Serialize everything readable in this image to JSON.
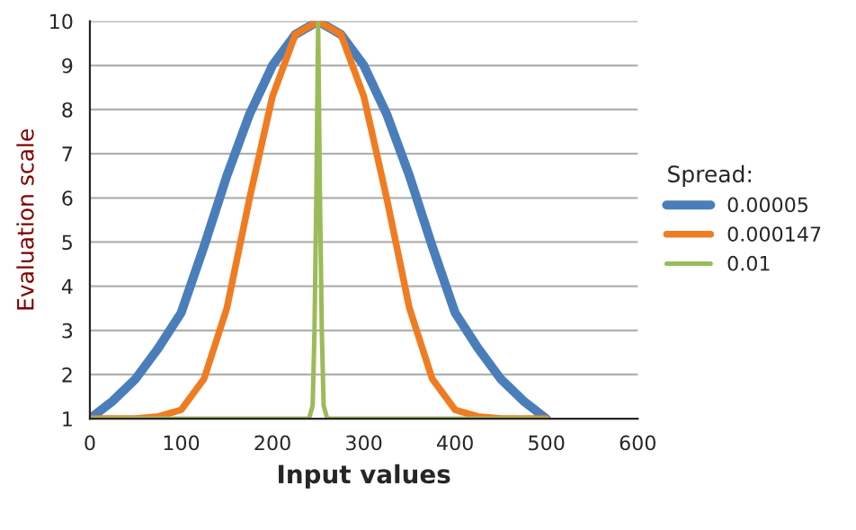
{
  "chart_data": {
    "type": "line",
    "xlabel": "Input values",
    "ylabel": "Evaluation scale",
    "legend_title": "Spread:",
    "xlim": [
      0,
      600
    ],
    "xticks": [
      0,
      100,
      200,
      300,
      400,
      500,
      600
    ],
    "ylim": [
      1,
      10
    ],
    "yticks": [
      1,
      2,
      3,
      4,
      5,
      6,
      7,
      8,
      9,
      10
    ],
    "grid": "y",
    "legend": "right",
    "marker": "none",
    "line_style": "solid",
    "series": [
      {
        "name": "0.00005",
        "color": "#4a7ebb",
        "x": [
          0,
          25,
          50,
          75,
          100,
          125,
          150,
          175,
          200,
          225,
          250,
          275,
          300,
          325,
          350,
          375,
          400,
          425,
          450,
          475,
          500
        ],
        "values": [
          1.0,
          1.4,
          1.9,
          2.6,
          3.4,
          4.9,
          6.5,
          7.9,
          9.0,
          9.7,
          10,
          9.7,
          9.0,
          7.9,
          6.5,
          4.9,
          3.4,
          2.6,
          1.9,
          1.4,
          1.0
        ]
      },
      {
        "name": "0.000147",
        "color": "#f07c22",
        "x": [
          0,
          50,
          75,
          100,
          125,
          150,
          175,
          200,
          225,
          250,
          275,
          300,
          325,
          350,
          375,
          400,
          425,
          450,
          500
        ],
        "values": [
          1.0,
          1.0,
          1.05,
          1.2,
          1.9,
          3.5,
          6.0,
          8.3,
          9.7,
          10,
          9.7,
          8.3,
          6.0,
          3.5,
          1.9,
          1.2,
          1.05,
          1.0,
          1.0
        ]
      },
      {
        "name": "0.01",
        "color": "#9bbb59",
        "x": [
          0,
          240,
          244,
          246,
          248,
          250,
          252,
          254,
          256,
          260,
          500
        ],
        "values": [
          1.0,
          1.0,
          1.3,
          3.0,
          6.0,
          10,
          6.0,
          3.0,
          1.3,
          1.0,
          1.0
        ]
      }
    ]
  }
}
